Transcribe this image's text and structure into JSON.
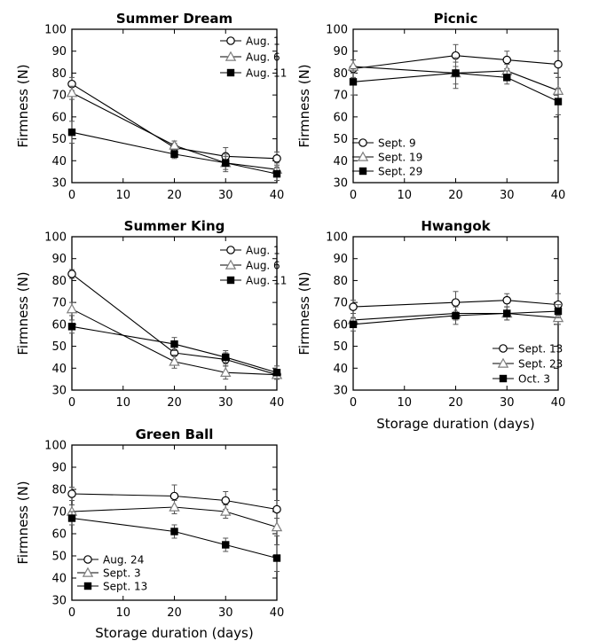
{
  "figure": {
    "ylabel": "Firmness (N)",
    "xlabel": "Storage duration (days)",
    "colors": {
      "line": "#000000",
      "errorbar": "#555555",
      "triangle": "#7f7f7f",
      "open_marker_fill": "#ffffff"
    }
  },
  "chart_data": [
    {
      "type": "line",
      "title": "Summer Dream",
      "xlabel": "",
      "ylabel": "Firmness (N)",
      "xlim": [
        0,
        40
      ],
      "ylim": [
        30,
        100
      ],
      "xticks": [
        0,
        10,
        20,
        30,
        40
      ],
      "yticks": [
        30,
        40,
        50,
        60,
        70,
        80,
        90,
        100
      ],
      "legend_position": "top-right",
      "series": [
        {
          "name": "Aug. 1",
          "marker": "open-circle",
          "x": [
            0,
            20,
            30,
            40
          ],
          "values": [
            75,
            46,
            42,
            41
          ],
          "errors": [
            3,
            2,
            4,
            3
          ]
        },
        {
          "name": "Aug. 6",
          "marker": "open-triangle",
          "x": [
            0,
            20,
            30,
            40
          ],
          "values": [
            71,
            47,
            39,
            36
          ],
          "errors": [
            3,
            2,
            4,
            3
          ]
        },
        {
          "name": "Aug. 11",
          "marker": "filled-square",
          "x": [
            0,
            20,
            30,
            40
          ],
          "values": [
            53,
            43,
            39,
            34
          ],
          "errors": [
            5,
            2,
            3,
            3
          ]
        }
      ]
    },
    {
      "type": "line",
      "title": "Picnic",
      "xlabel": "",
      "ylabel": "Firmness (N)",
      "xlim": [
        0,
        40
      ],
      "ylim": [
        30,
        100
      ],
      "xticks": [
        0,
        10,
        20,
        30,
        40
      ],
      "yticks": [
        30,
        40,
        50,
        60,
        70,
        80,
        90,
        100
      ],
      "legend_position": "bottom-left",
      "series": [
        {
          "name": "Sept. 9",
          "marker": "open-circle",
          "x": [
            0,
            20,
            30,
            40
          ],
          "values": [
            82,
            88,
            86,
            84
          ],
          "errors": [
            4,
            5,
            4,
            6
          ]
        },
        {
          "name": "Sept. 19",
          "marker": "open-triangle",
          "x": [
            0,
            20,
            30,
            40
          ],
          "values": [
            83,
            80,
            81,
            72
          ],
          "errors": [
            3,
            5,
            3,
            6
          ]
        },
        {
          "name": "Sept. 29",
          "marker": "filled-square",
          "x": [
            0,
            20,
            30,
            40
          ],
          "values": [
            76,
            80,
            78,
            67
          ],
          "errors": [
            6,
            7,
            3,
            6
          ]
        }
      ]
    },
    {
      "type": "line",
      "title": "Summer King",
      "xlabel": "",
      "ylabel": "Firmness (N)",
      "xlim": [
        0,
        40
      ],
      "ylim": [
        30,
        100
      ],
      "xticks": [
        0,
        10,
        20,
        30,
        40
      ],
      "yticks": [
        30,
        40,
        50,
        60,
        70,
        80,
        90,
        100
      ],
      "legend_position": "top-right",
      "series": [
        {
          "name": "Aug. 1",
          "marker": "open-circle",
          "x": [
            0,
            20,
            30,
            40
          ],
          "values": [
            83,
            47,
            44,
            37
          ],
          "errors": [
            2,
            3,
            3,
            2
          ]
        },
        {
          "name": "Aug. 6",
          "marker": "open-triangle",
          "x": [
            0,
            20,
            30,
            40
          ],
          "values": [
            67,
            43,
            38,
            37
          ],
          "errors": [
            3,
            3,
            3,
            2
          ]
        },
        {
          "name": "Aug. 11",
          "marker": "filled-square",
          "x": [
            0,
            20,
            30,
            40
          ],
          "values": [
            59,
            51,
            45,
            38
          ],
          "errors": [
            3,
            3,
            3,
            3
          ]
        }
      ]
    },
    {
      "type": "line",
      "title": "Hwangok",
      "xlabel": "Storage duration (days)",
      "ylabel": "Firmness (N)",
      "xlim": [
        0,
        40
      ],
      "ylim": [
        30,
        100
      ],
      "xticks": [
        0,
        10,
        20,
        30,
        40
      ],
      "yticks": [
        30,
        40,
        50,
        60,
        70,
        80,
        90,
        100
      ],
      "legend_position": "bottom-right",
      "series": [
        {
          "name": "Sept. 13",
          "marker": "open-circle",
          "x": [
            0,
            20,
            30,
            40
          ],
          "values": [
            68,
            70,
            71,
            69
          ],
          "errors": [
            3,
            5,
            3,
            5
          ]
        },
        {
          "name": "Sept. 23",
          "marker": "open-triangle",
          "x": [
            0,
            20,
            30,
            40
          ],
          "values": [
            62,
            65,
            65,
            63
          ],
          "errors": [
            3,
            3,
            3,
            3
          ]
        },
        {
          "name": "Oct. 3",
          "marker": "filled-square",
          "x": [
            0,
            20,
            30,
            40
          ],
          "values": [
            60,
            64,
            65,
            66
          ],
          "errors": [
            3,
            4,
            3,
            3
          ]
        }
      ]
    },
    {
      "type": "line",
      "title": "Green Ball",
      "xlabel": "Storage duration (days)",
      "ylabel": "Firmness (N)",
      "xlim": [
        0,
        40
      ],
      "ylim": [
        30,
        100
      ],
      "xticks": [
        0,
        10,
        20,
        30,
        40
      ],
      "yticks": [
        30,
        40,
        50,
        60,
        70,
        80,
        90,
        100
      ],
      "legend_position": "bottom-left",
      "series": [
        {
          "name": "Aug. 24",
          "marker": "open-circle",
          "x": [
            0,
            20,
            30,
            40
          ],
          "values": [
            78,
            77,
            75,
            71
          ],
          "errors": [
            3,
            5,
            4,
            4
          ]
        },
        {
          "name": "Sept. 3",
          "marker": "open-triangle",
          "x": [
            0,
            20,
            30,
            40
          ],
          "values": [
            70,
            72,
            70,
            63
          ],
          "errors": [
            3,
            3,
            3,
            4
          ]
        },
        {
          "name": "Sept. 13",
          "marker": "filled-square",
          "x": [
            0,
            20,
            30,
            40
          ],
          "values": [
            67,
            61,
            55,
            49
          ],
          "errors": [
            3,
            3,
            3,
            6
          ]
        }
      ]
    }
  ]
}
